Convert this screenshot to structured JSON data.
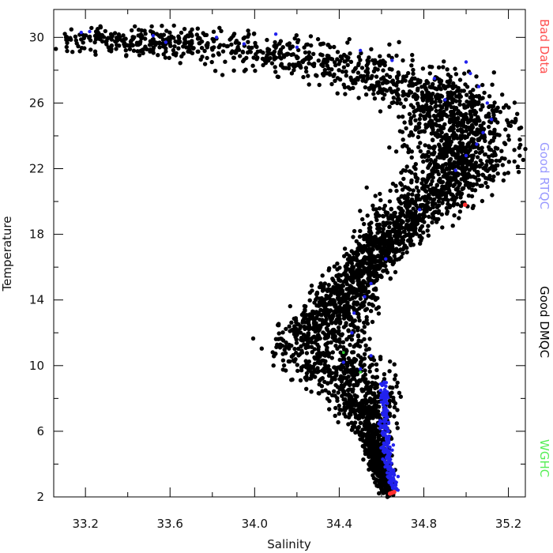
{
  "chart_data": {
    "type": "scatter",
    "xlabel": "Salinity",
    "ylabel": "Temperature",
    "xlim": [
      33.05,
      35.28
    ],
    "ylim": [
      2,
      31.7
    ],
    "xticks": [
      "33.2",
      "33.6",
      "34.0",
      "34.4",
      "34.8",
      "35.2"
    ],
    "yticks": [
      "2",
      "6",
      "10",
      "14",
      "18",
      "22",
      "26",
      "30"
    ],
    "grid": false,
    "legend_position": "right, vertical",
    "legend": [
      {
        "label": "Bad Data",
        "color": "#ff5050"
      },
      {
        "label": "Good RTQC",
        "color": "#9999ff"
      },
      {
        "label": "Good DMQC",
        "color": "#000000"
      },
      {
        "label": "WGHC",
        "color": "#55ee55"
      }
    ],
    "series": [
      {
        "name": "Good DMQC",
        "color": "#000000",
        "profile": [
          [
            30.4,
            33.5,
            0.18
          ],
          [
            29.8,
            33.8,
            0.3
          ],
          [
            29.0,
            34.1,
            0.3
          ],
          [
            28.0,
            34.5,
            0.25
          ],
          [
            27.0,
            34.75,
            0.17
          ],
          [
            26.0,
            34.92,
            0.15
          ],
          [
            24.0,
            35.0,
            0.13
          ],
          [
            22.0,
            34.97,
            0.13
          ],
          [
            20.5,
            34.87,
            0.11
          ],
          [
            19.0,
            34.73,
            0.09
          ],
          [
            17.0,
            34.58,
            0.07
          ],
          [
            15.0,
            34.46,
            0.07
          ],
          [
            13.0,
            34.36,
            0.1
          ],
          [
            11.5,
            34.3,
            0.12
          ],
          [
            10.5,
            34.34,
            0.13
          ],
          [
            9.5,
            34.42,
            0.12
          ],
          [
            8.5,
            34.5,
            0.1
          ],
          [
            7.5,
            34.52,
            0.08
          ],
          [
            6.5,
            34.55,
            0.05
          ],
          [
            5.0,
            34.57,
            0.03
          ],
          [
            4.0,
            34.59,
            0.025
          ],
          [
            3.0,
            34.61,
            0.02
          ],
          [
            2.3,
            34.63,
            0.015
          ]
        ]
      },
      {
        "name": "Good RTQC",
        "color": "#2222ee",
        "profile": [
          [
            9.0,
            34.61,
            0.01
          ],
          [
            7.0,
            34.615,
            0.01
          ],
          [
            5.5,
            34.62,
            0.012
          ],
          [
            4.0,
            34.635,
            0.012
          ],
          [
            3.0,
            34.65,
            0.012
          ],
          [
            2.4,
            34.66,
            0.01
          ]
        ],
        "scattered": [
          [
            33.18,
            30.3
          ],
          [
            33.22,
            30.35
          ],
          [
            33.52,
            30.1
          ],
          [
            33.58,
            29.7
          ],
          [
            33.82,
            30.0
          ],
          [
            33.95,
            29.6
          ],
          [
            34.1,
            30.2
          ],
          [
            34.2,
            29.4
          ],
          [
            34.5,
            29.2
          ],
          [
            34.65,
            28.6
          ],
          [
            35.0,
            28.5
          ],
          [
            35.02,
            27.8
          ],
          [
            35.06,
            27.0
          ],
          [
            35.1,
            26.0
          ],
          [
            35.12,
            25.0
          ],
          [
            35.08,
            24.2
          ],
          [
            35.05,
            23.5
          ],
          [
            35.0,
            22.8
          ],
          [
            34.95,
            21.9
          ],
          [
            34.78,
            19.5
          ],
          [
            34.62,
            16.5
          ],
          [
            34.55,
            15.0
          ],
          [
            34.52,
            14.2
          ],
          [
            34.46,
            12.0
          ],
          [
            34.42,
            10.2
          ],
          [
            34.5,
            9.8
          ],
          [
            34.55,
            10.6
          ],
          [
            34.47,
            13.2
          ],
          [
            34.9,
            26.2
          ],
          [
            34.85,
            27.5
          ]
        ]
      },
      {
        "name": "Bad Data",
        "color": "#ff3030",
        "points": [
          [
            34.65,
            2.25
          ],
          [
            34.66,
            2.3
          ],
          [
            34.64,
            2.2
          ],
          [
            34.995,
            19.8
          ]
        ]
      },
      {
        "name": "WGHC",
        "color": "#33cc33",
        "points": [
          [
            34.42,
            10.8
          ],
          [
            34.5,
            9.6
          ]
        ]
      }
    ]
  }
}
